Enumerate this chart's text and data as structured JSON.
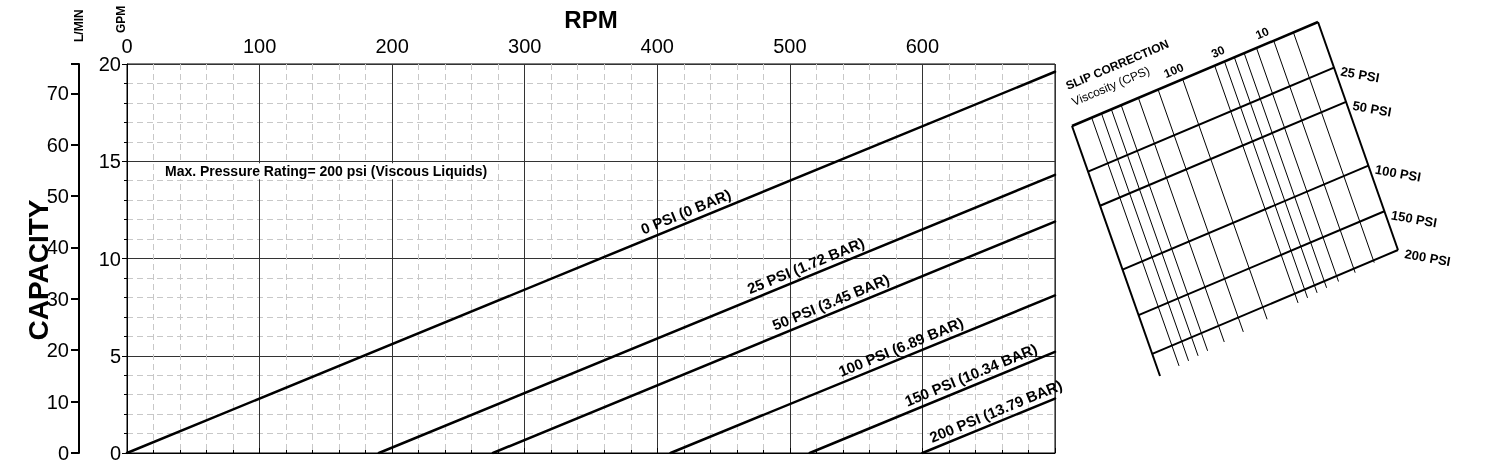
{
  "chart_data": {
    "type": "line",
    "xlabel": "RPM",
    "ylabel": "GPM",
    "y2label": "L/MIN",
    "annotations": [
      "CAPACITY",
      "Max. Pressure Rating= 200 psi (Viscous Liquids)",
      "SLIP CORRECTION",
      "Viscosity (CPS)",
      "100",
      "30",
      "10",
      "25 PSI",
      "50 PSI",
      "100 PSI",
      "150 PSI",
      "200 PSI"
    ],
    "series": [
      {
        "name": "0 PSI (0 BAR)",
        "color": "#000000",
        "x": [
          0,
          700
        ],
        "values": [
          0,
          19.6
        ]
      },
      {
        "name": "25 PSI (1.72 BAR)",
        "color": "#000000",
        "x": [
          190,
          700
        ],
        "values": [
          0,
          14.3
        ]
      },
      {
        "name": "50 PSI (3.45 BAR)",
        "color": "#000000",
        "x": [
          276,
          700
        ],
        "values": [
          0,
          11.9
        ]
      },
      {
        "name": "100 PSI (6.89 BAR)",
        "color": "#000000",
        "x": [
          410,
          700
        ],
        "values": [
          0,
          8.1
        ]
      },
      {
        "name": "150 PSI (10.34 BAR)",
        "color": "#000000",
        "x": [
          515,
          700
        ],
        "values": [
          0,
          5.2
        ]
      },
      {
        "name": "200 PSI (13.79 BAR)",
        "color": "#000000",
        "x": [
          600,
          700
        ],
        "values": [
          0,
          2.8
        ]
      }
    ],
    "xlim": [
      0,
      700
    ],
    "xticks": [
      0,
      100,
      200,
      300,
      400,
      500,
      600
    ],
    "ylim": [
      0,
      20
    ],
    "yticks": [
      0,
      5,
      10,
      15,
      20
    ],
    "y2lim": [
      0,
      75.7
    ],
    "y2ticks": [
      0,
      10,
      20,
      30,
      40,
      50,
      60,
      70
    ],
    "grid": true,
    "legend": false,
    "marker": "none",
    "line_style": "solid"
  }
}
